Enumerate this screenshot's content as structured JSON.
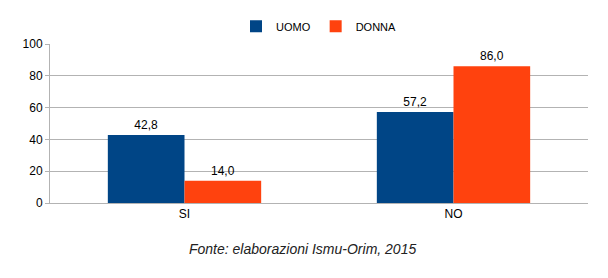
{
  "chart_data": {
    "type": "bar",
    "categories": [
      "SI",
      "NO"
    ],
    "series": [
      {
        "name": "UOMO",
        "color": "#004586",
        "values": [
          42.8,
          57.2
        ],
        "value_labels": [
          "42,8",
          "57,2"
        ]
      },
      {
        "name": "DONNA",
        "color": "#ff420e",
        "values": [
          14.0,
          86.0
        ],
        "value_labels": [
          "14,0",
          "86,0"
        ]
      }
    ],
    "ylim": [
      0,
      100
    ],
    "yticks": [
      0,
      20,
      40,
      60,
      80,
      100
    ],
    "grid": true,
    "legend": "top",
    "data_labels": true,
    "annotations": [
      "Fonte: elaborazioni Ismu-Orim, 2015"
    ]
  }
}
